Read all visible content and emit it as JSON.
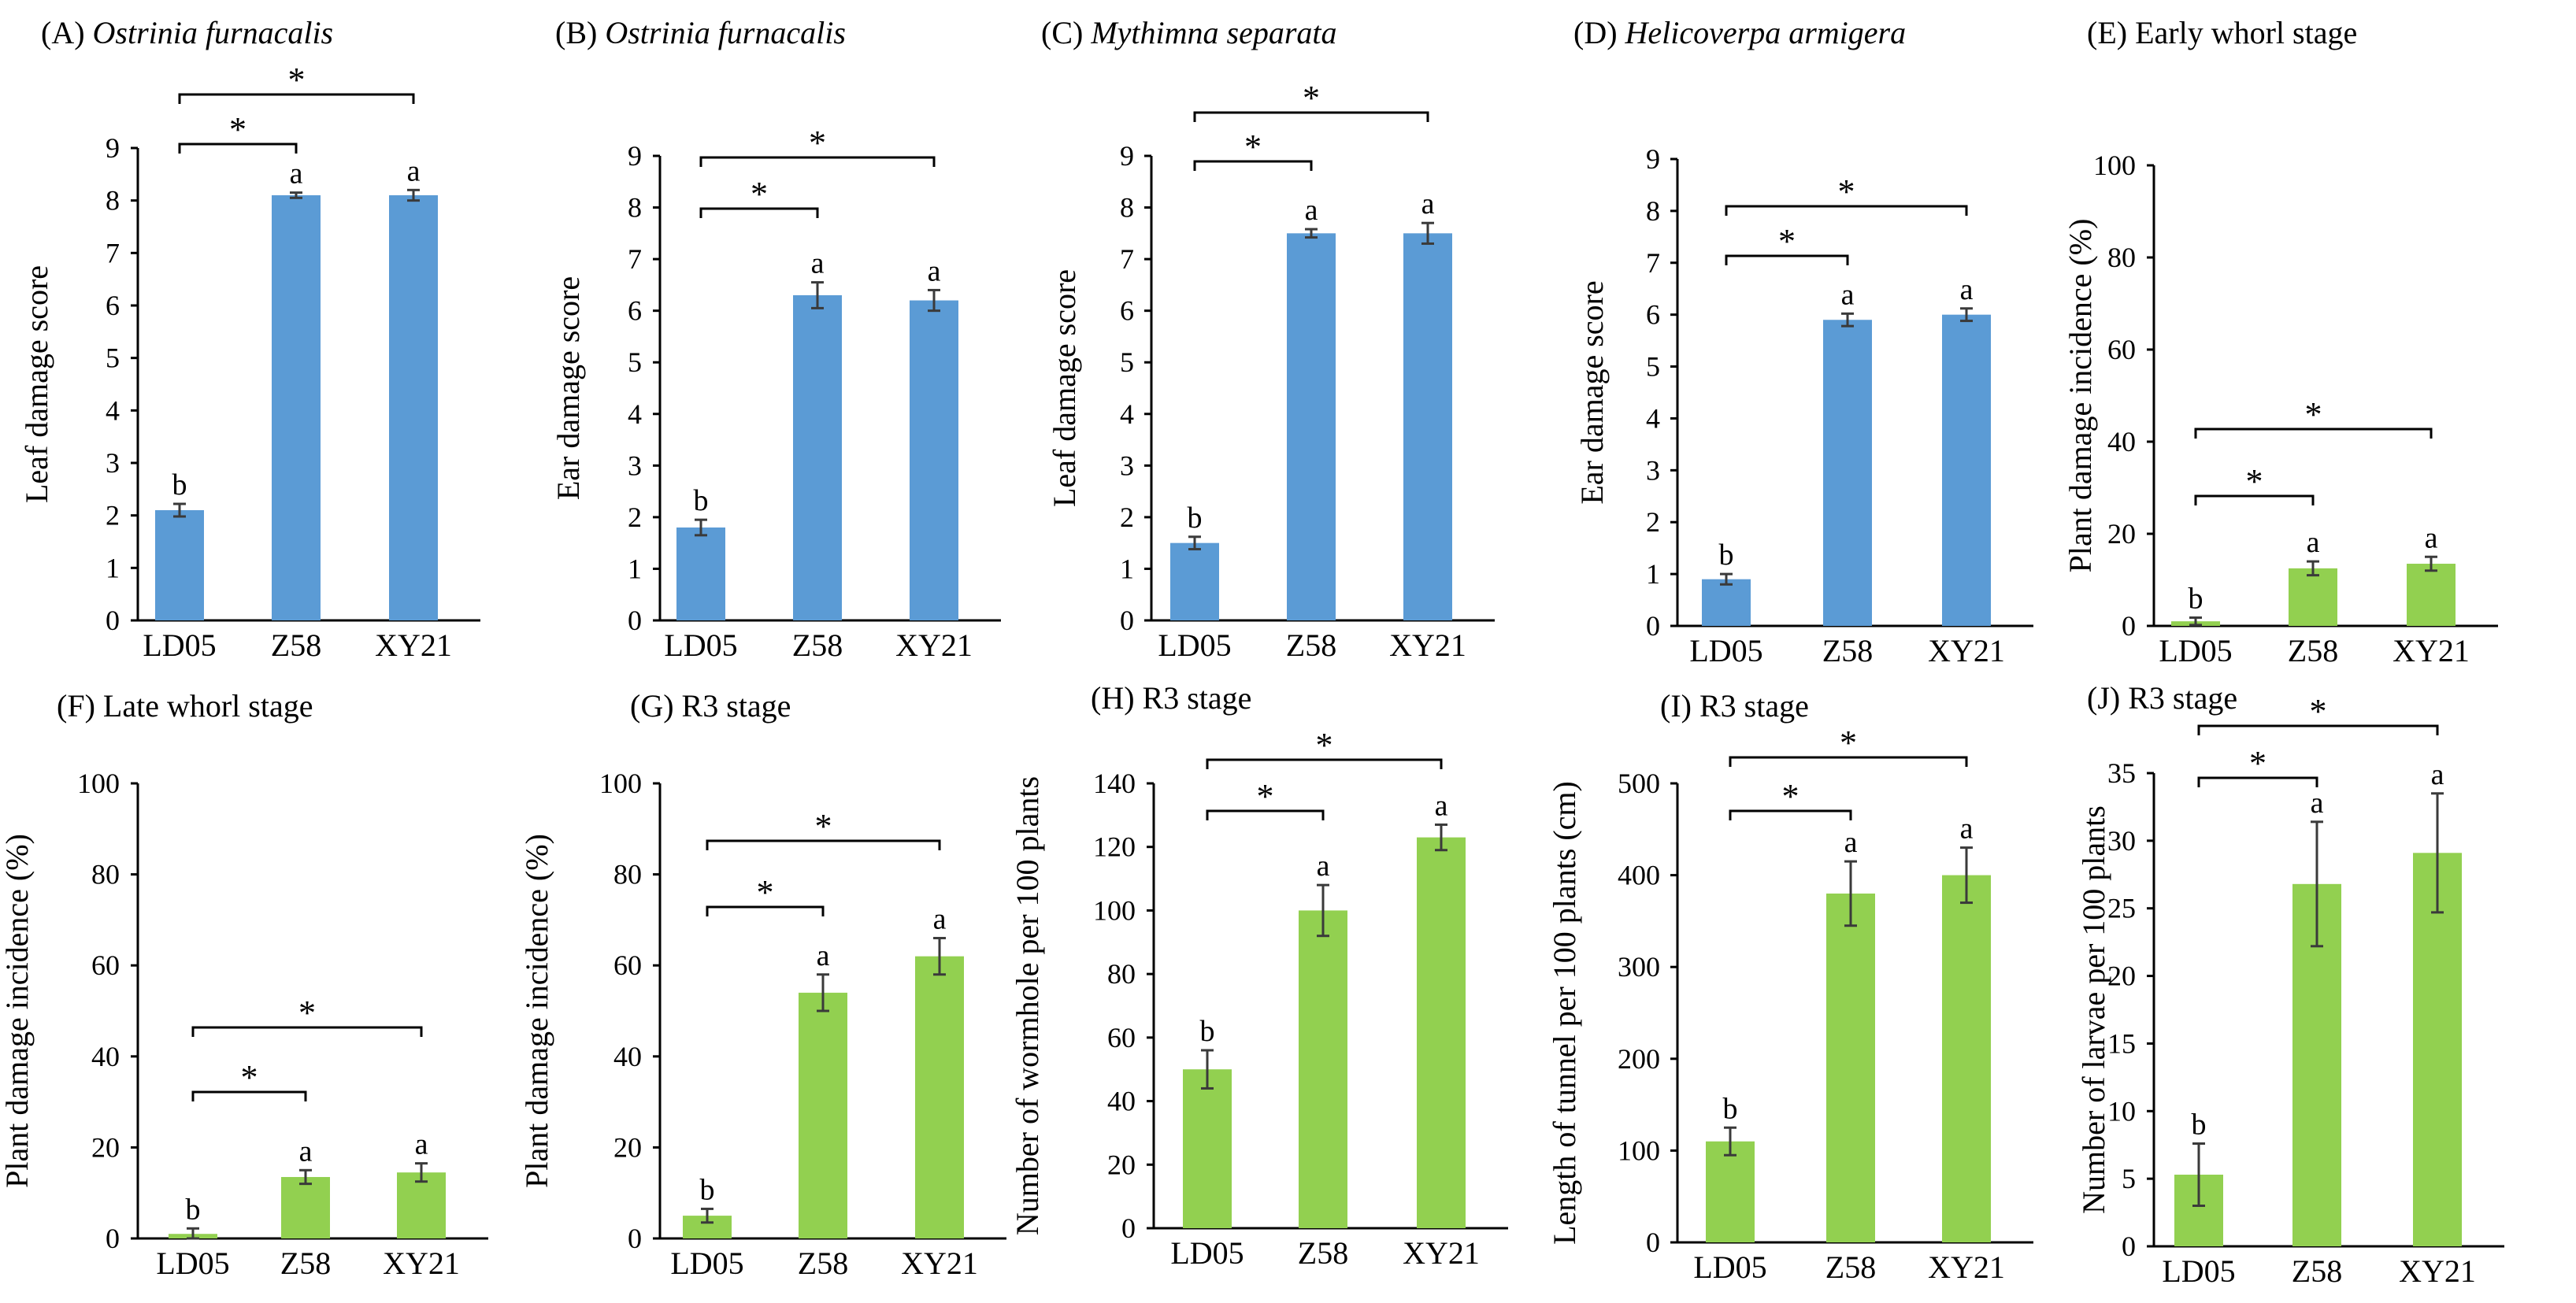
{
  "colors": {
    "blue": "#5b9bd5",
    "green": "#92d050"
  },
  "chart_data": [
    {
      "id": "A",
      "type": "bar",
      "title_prefix": "(A) ",
      "title_italic": "Ostrinia furnacalis",
      "title": "(A) Ostrinia furnacalis",
      "ylabel": "Leaf damage score",
      "categories": [
        "LD05",
        "Z58",
        "XY21"
      ],
      "values": [
        2.1,
        8.1,
        8.1
      ],
      "errors": [
        0.12,
        0.05,
        0.1
      ],
      "letters": [
        "b",
        "a",
        "a"
      ],
      "ylim": [
        0,
        9
      ],
      "yticks": [
        "0",
        "1",
        "2",
        "3",
        "4",
        "5",
        "6",
        "7",
        "8",
        "9"
      ],
      "significance": [
        "*",
        "*"
      ],
      "color": "blue"
    },
    {
      "id": "B",
      "type": "bar",
      "title_prefix": "(B) ",
      "title_italic": "Ostrinia furnacalis",
      "title": "(B) Ostrinia furnacalis",
      "ylabel": "Ear damage score",
      "categories": [
        "LD05",
        "Z58",
        "XY21"
      ],
      "values": [
        1.8,
        6.3,
        6.2
      ],
      "errors": [
        0.15,
        0.25,
        0.2
      ],
      "letters": [
        "b",
        "a",
        "a"
      ],
      "ylim": [
        0,
        9
      ],
      "yticks": [
        "0",
        "1",
        "2",
        "3",
        "4",
        "5",
        "6",
        "7",
        "8",
        "9"
      ],
      "significance": [
        "*",
        "*"
      ],
      "color": "blue"
    },
    {
      "id": "C",
      "type": "bar",
      "title_prefix": "(C) ",
      "title_italic": "Mythimna separata",
      "title": "(C) Mythimna separata",
      "ylabel": "Leaf damage score",
      "categories": [
        "LD05",
        "Z58",
        "XY21"
      ],
      "values": [
        1.5,
        7.5,
        7.5
      ],
      "errors": [
        0.12,
        0.08,
        0.2
      ],
      "letters": [
        "b",
        "a",
        "a"
      ],
      "ylim": [
        0,
        9
      ],
      "yticks": [
        "0",
        "1",
        "2",
        "3",
        "4",
        "5",
        "6",
        "7",
        "8",
        "9"
      ],
      "significance": [
        "*",
        "*"
      ],
      "color": "blue"
    },
    {
      "id": "D",
      "type": "bar",
      "title_prefix": "(D) ",
      "title_italic": "Helicoverpa armigera",
      "title": "(D) Helicoverpa armigera",
      "ylabel": "Ear damage score",
      "categories": [
        "LD05",
        "Z58",
        "XY21"
      ],
      "values": [
        0.9,
        5.9,
        6.0
      ],
      "errors": [
        0.1,
        0.12,
        0.12
      ],
      "letters": [
        "b",
        "a",
        "a"
      ],
      "ylim": [
        0,
        9
      ],
      "yticks": [
        "0",
        "1",
        "2",
        "3",
        "4",
        "5",
        "6",
        "7",
        "8",
        "9"
      ],
      "significance": [
        "*",
        "*"
      ],
      "color": "blue"
    },
    {
      "id": "E",
      "type": "bar",
      "title_prefix": "(E) Early whorl stage",
      "title_italic": "",
      "title": "(E) Early whorl stage",
      "ylabel": "Plant damage incidence (%)",
      "categories": [
        "LD05",
        "Z58",
        "XY21"
      ],
      "values": [
        1,
        12.5,
        13.5
      ],
      "errors": [
        0.8,
        1.5,
        1.5
      ],
      "letters": [
        "b",
        "a",
        "a"
      ],
      "ylim": [
        0,
        100
      ],
      "yticks": [
        "0",
        "20",
        "40",
        "60",
        "80",
        "100"
      ],
      "significance": [
        "*",
        "*"
      ],
      "color": "green"
    },
    {
      "id": "F",
      "type": "bar",
      "title_prefix": "(F) Late whorl stage",
      "title_italic": "",
      "title": "(F) Late whorl stage",
      "ylabel": "Plant damage incidence (%)",
      "categories": [
        "LD05",
        "Z58",
        "XY21"
      ],
      "values": [
        1,
        13.5,
        14.5
      ],
      "errors": [
        1.2,
        1.5,
        2
      ],
      "letters": [
        "b",
        "a",
        "a"
      ],
      "ylim": [
        0,
        100
      ],
      "yticks": [
        "0",
        "20",
        "40",
        "60",
        "80",
        "100"
      ],
      "significance": [
        "*",
        "*"
      ],
      "color": "green"
    },
    {
      "id": "G",
      "type": "bar",
      "title_prefix": "(G) R3 stage",
      "title_italic": "",
      "title": "(G) R3 stage",
      "ylabel": "Plant damage incidence (%)",
      "categories": [
        "LD05",
        "Z58",
        "XY21"
      ],
      "values": [
        5,
        54,
        62
      ],
      "errors": [
        1.5,
        4,
        4
      ],
      "letters": [
        "b",
        "a",
        "a"
      ],
      "ylim": [
        0,
        100
      ],
      "yticks": [
        "0",
        "20",
        "40",
        "60",
        "80",
        "100"
      ],
      "significance": [
        "*",
        "*"
      ],
      "color": "green"
    },
    {
      "id": "H",
      "type": "bar",
      "title_prefix": "(H) R3 stage",
      "title_italic": "",
      "title": "(H) R3 stage",
      "ylabel": "Number of wormhole per 100 plants",
      "categories": [
        "LD05",
        "Z58",
        "XY21"
      ],
      "values": [
        50,
        100,
        123
      ],
      "errors": [
        6,
        8,
        4
      ],
      "letters": [
        "b",
        "a",
        "a"
      ],
      "ylim": [
        0,
        140
      ],
      "yticks": [
        "0",
        "20",
        "40",
        "60",
        "80",
        "100",
        "120",
        "140"
      ],
      "significance": [
        "*",
        "*"
      ],
      "color": "green"
    },
    {
      "id": "I",
      "type": "bar",
      "title_prefix": "(I) R3 stage",
      "title_italic": "",
      "title": "(I) R3 stage",
      "ylabel": "Length of tunnel per 100 plants (cm)",
      "categories": [
        "LD05",
        "Z58",
        "XY21"
      ],
      "values": [
        110,
        380,
        400
      ],
      "errors": [
        15,
        35,
        30
      ],
      "letters": [
        "b",
        "a",
        "a"
      ],
      "ylim": [
        0,
        500
      ],
      "yticks": [
        "0",
        "100",
        "200",
        "300",
        "400",
        "500"
      ],
      "significance": [
        "*",
        "*"
      ],
      "color": "green"
    },
    {
      "id": "J",
      "type": "bar",
      "title_prefix": "(J) R3 stage",
      "title_italic": "",
      "title": "(J) R3 stage",
      "ylabel": "Number of larvae per 100 plants",
      "categories": [
        "LD05",
        "Z58",
        "XY21"
      ],
      "values": [
        5.3,
        26.8,
        29.1
      ],
      "errors": [
        2.3,
        4.6,
        4.4
      ],
      "letters": [
        "b",
        "a",
        "a"
      ],
      "ylim": [
        0,
        35
      ],
      "yticks": [
        "0",
        "5",
        "10",
        "15",
        "20",
        "25",
        "30",
        "35"
      ],
      "significance": [
        "*",
        "*"
      ],
      "color": "green"
    }
  ]
}
